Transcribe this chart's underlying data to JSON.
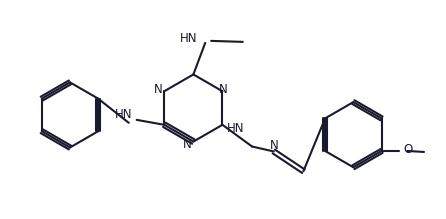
{
  "bg_color": "#ffffff",
  "line_color": "#1a1a2e",
  "line_width": 1.5,
  "figsize": [
    4.46,
    2.19
  ],
  "dpi": 100,
  "font_size": 8.5,
  "font_color": "#1a1a2e",
  "xlim": [
    0,
    446
  ],
  "ylim": [
    0,
    219
  ]
}
